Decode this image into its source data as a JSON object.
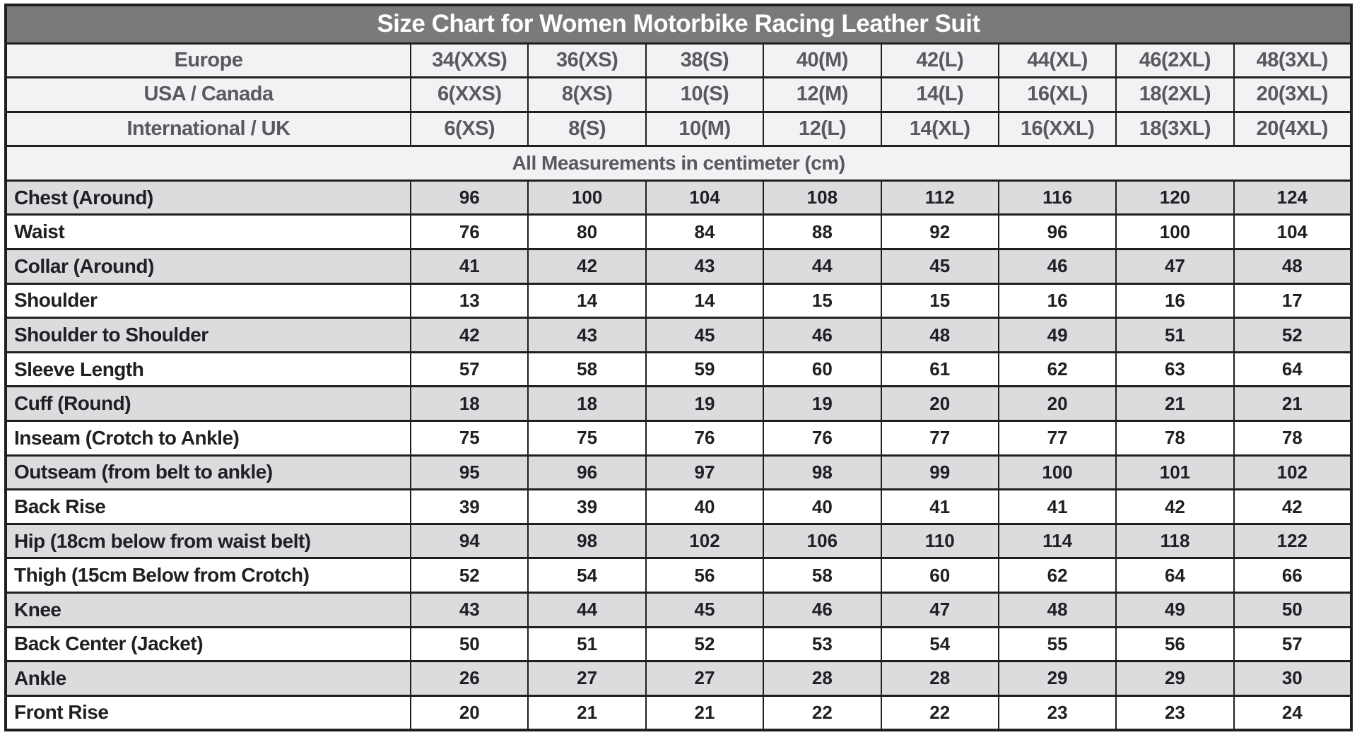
{
  "chart_data": {
    "type": "table",
    "title": "Size Chart for Women Motorbike Racing Leather Suit",
    "unit_note": "All Measurements in centimeter (cm)",
    "size_systems": [
      {
        "label": "Europe",
        "values": [
          "34(XXS)",
          "36(XS)",
          "38(S)",
          "40(M)",
          "42(L)",
          "44(XL)",
          "46(2XL)",
          "48(3XL)"
        ]
      },
      {
        "label": "USA / Canada",
        "values": [
          "6(XXS)",
          "8(XS)",
          "10(S)",
          "12(M)",
          "14(L)",
          "16(XL)",
          "18(2XL)",
          "20(3XL)"
        ]
      },
      {
        "label": "International / UK",
        "values": [
          "6(XS)",
          "8(S)",
          "10(M)",
          "12(L)",
          "14(XL)",
          "16(XXL)",
          "18(3XL)",
          "20(4XL)"
        ]
      }
    ],
    "measurements": [
      {
        "label": "Chest (Around)",
        "values": [
          96,
          100,
          104,
          108,
          112,
          116,
          120,
          124
        ]
      },
      {
        "label": "Waist",
        "values": [
          76,
          80,
          84,
          88,
          92,
          96,
          100,
          104
        ]
      },
      {
        "label": "Collar (Around)",
        "values": [
          41,
          42,
          43,
          44,
          45,
          46,
          47,
          48
        ]
      },
      {
        "label": "Shoulder",
        "values": [
          13,
          14,
          14,
          15,
          15,
          16,
          16,
          17
        ]
      },
      {
        "label": "Shoulder to Shoulder",
        "values": [
          42,
          43,
          45,
          46,
          48,
          49,
          51,
          52
        ]
      },
      {
        "label": "Sleeve Length",
        "values": [
          57,
          58,
          59,
          60,
          61,
          62,
          63,
          64
        ]
      },
      {
        "label": "Cuff (Round)",
        "values": [
          18,
          18,
          19,
          19,
          20,
          20,
          21,
          21
        ]
      },
      {
        "label": "Inseam (Crotch to Ankle)",
        "values": [
          75,
          75,
          76,
          76,
          77,
          77,
          78,
          78
        ]
      },
      {
        "label": "Outseam (from belt to ankle)",
        "values": [
          95,
          96,
          97,
          98,
          99,
          100,
          101,
          102
        ]
      },
      {
        "label": "Back Rise",
        "values": [
          39,
          39,
          40,
          40,
          41,
          41,
          42,
          42
        ]
      },
      {
        "label": "Hip (18cm below from waist belt)",
        "values": [
          94,
          98,
          102,
          106,
          110,
          114,
          118,
          122
        ]
      },
      {
        "label": "Thigh (15cm Below from Crotch)",
        "values": [
          52,
          54,
          56,
          58,
          60,
          62,
          64,
          66
        ]
      },
      {
        "label": "Knee",
        "values": [
          43,
          44,
          45,
          46,
          47,
          48,
          49,
          50
        ]
      },
      {
        "label": "Back Center (Jacket)",
        "values": [
          50,
          51,
          52,
          53,
          54,
          55,
          56,
          57
        ]
      },
      {
        "label": "Ankle",
        "values": [
          26,
          27,
          27,
          28,
          28,
          29,
          29,
          30
        ]
      },
      {
        "label": "Front Rise",
        "values": [
          20,
          21,
          21,
          22,
          22,
          23,
          23,
          24
        ]
      }
    ]
  },
  "colors": {
    "title_bg": "#7a7a7d",
    "title_fg": "#ffffff",
    "header_bg": "#f2f2f4",
    "header_fg": "#595a5e",
    "shade_bg": "#dcdcde",
    "row_bg": "#ffffff",
    "ink": "#202024",
    "border": "#1f1f21"
  }
}
